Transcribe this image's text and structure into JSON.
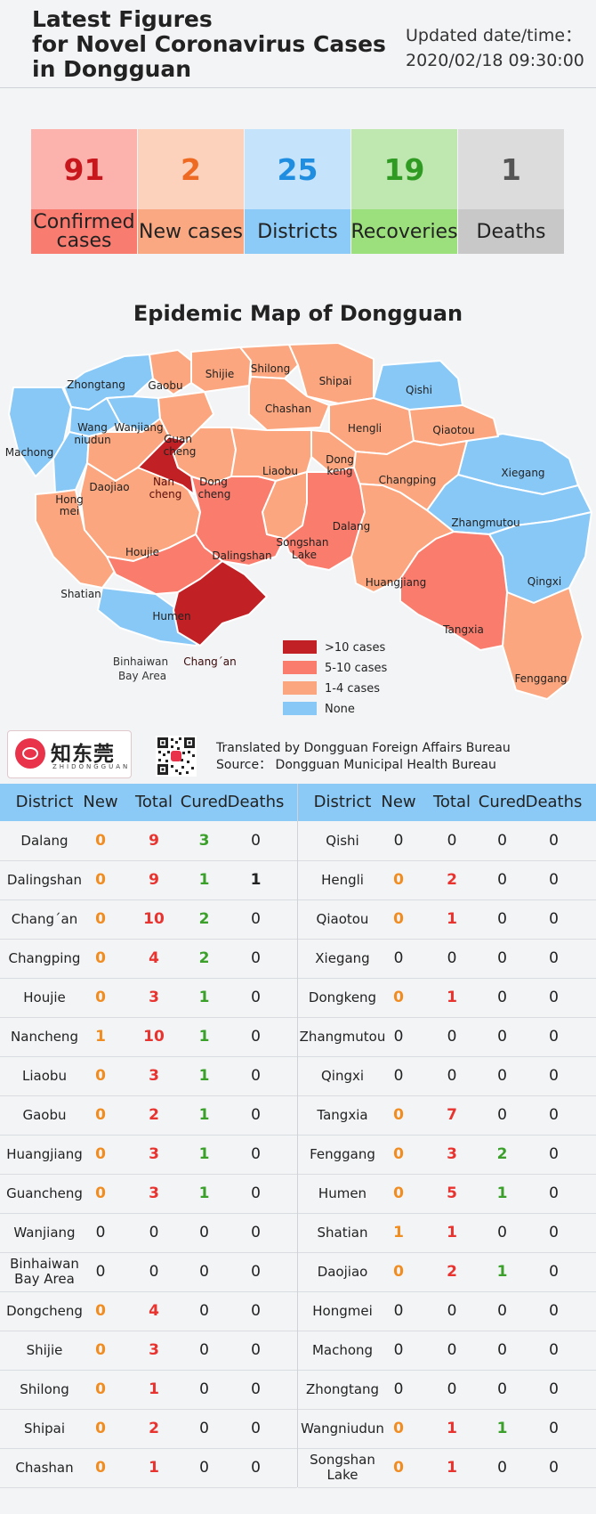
{
  "header": {
    "title_lines": [
      "Latest Figures",
      "for Novel Coronavirus Cases",
      "in Dongguan"
    ],
    "updated_label": "Updated date/time：",
    "updated_value": "2020/02/18 09:30:00"
  },
  "stats": [
    {
      "value": "91",
      "label": "Confirmed cases",
      "top_color": "#fcb3ad",
      "bottom_color": "#f97c70",
      "value_color": "#c8161d"
    },
    {
      "value": "2",
      "label": "New cases",
      "top_color": "#fdd2bc",
      "bottom_color": "#faa882",
      "value_color": "#ee6a23"
    },
    {
      "value": "25",
      "label": "Districts",
      "top_color": "#c5e3fb",
      "bottom_color": "#8ccbf7",
      "value_color": "#1f8ee0"
    },
    {
      "value": "19",
      "label": "Recoveries",
      "top_color": "#bfe8b0",
      "bottom_color": "#9be07c",
      "value_color": "#2f9b22"
    },
    {
      "value": "1",
      "label": "Deaths",
      "top_color": "#dcdcdc",
      "bottom_color": "#c8c8c8",
      "value_color": "#555555"
    }
  ],
  "map": {
    "title": "Epidemic Map of Dongguan",
    "colors": {
      "high": "#c12025",
      "mid": "#f97c6c",
      "low": "#fba67e",
      "none": "#88c8f7"
    },
    "legend": [
      {
        "label": ">10 cases",
        "color": "#c12025"
      },
      {
        "label": "5-10 cases",
        "color": "#f97c6c"
      },
      {
        "label": "1-4 cases",
        "color": "#fba67e"
      },
      {
        "label": "None",
        "color": "#88c8f7"
      }
    ],
    "district_labels": {
      "zhongtang": "Zhongtang",
      "gaobu": "Gaobu",
      "shijie": "Shijie",
      "shilong": "Shilong",
      "shipai": "Shipai",
      "qishi": "Qishi",
      "machong": "Machong",
      "wangniudun_1": "Wang",
      "wangniudun_2": "niudun",
      "wanjiang": "Wanjiang",
      "guancheng_1": "Guan",
      "guancheng_2": "cheng",
      "chashan": "Chashan",
      "hengli": "Hengli",
      "qiaotou": "Qiaotou",
      "dongkeng_1": "Dong",
      "dongkeng_2": "keng",
      "xiegang": "Xiegang",
      "daojiao": "Daojiao",
      "nancheng_1": "Nan",
      "nancheng_2": "cheng",
      "dongcheng_1": "Dong",
      "dongcheng_2": "cheng",
      "liaobu": "Liaobu",
      "changping": "Changping",
      "hongmei_1": "Hong",
      "hongmei_2": "mei",
      "dalang": "Dalang",
      "zhangmutou": "Zhangmutou",
      "houjie": "Houjie",
      "dalingshan": "Dalingshan",
      "songshanlake_1": "Songshan",
      "songshanlake_2": "Lake",
      "shatian": "Shatian",
      "huangjiang": "Huangjiang",
      "qingxi": "Qingxi",
      "humen": "Humen",
      "tangxia": "Tangxia",
      "binhaiwan_1": "Binhaiwan",
      "binhaiwan_2": "Bay Area",
      "changan": "Chang´an",
      "fenggang": "Fenggang"
    }
  },
  "branding": {
    "logo_text": "知东莞",
    "logo_sub": "ZHIDONGGUAN",
    "logo_color": "#e8334a",
    "translated_by": "Translated by Dongguan Foreign Affairs Bureau",
    "source": "Source：  Dongguan Municipal Health Bureau"
  },
  "table": {
    "headers": [
      "District",
      "New",
      "Total",
      "Cured",
      "Deaths"
    ],
    "header_color": "#8bcaf6",
    "left": [
      {
        "district": "Dalang",
        "new": "0",
        "total": "9",
        "cured": "3",
        "deaths": "0"
      },
      {
        "district": "Dalingshan",
        "new": "0",
        "total": "9",
        "cured": "1",
        "deaths": "1"
      },
      {
        "district": "Chang´an",
        "new": "0",
        "total": "10",
        "cured": "2",
        "deaths": "0"
      },
      {
        "district": "Changping",
        "new": "0",
        "total": "4",
        "cured": "2",
        "deaths": "0"
      },
      {
        "district": "Houjie",
        "new": "0",
        "total": "3",
        "cured": "1",
        "deaths": "0"
      },
      {
        "district": "Nancheng",
        "new": "1",
        "total": "10",
        "cured": "1",
        "deaths": "0"
      },
      {
        "district": "Liaobu",
        "new": "0",
        "total": "3",
        "cured": "1",
        "deaths": "0"
      },
      {
        "district": "Gaobu",
        "new": "0",
        "total": "2",
        "cured": "1",
        "deaths": "0"
      },
      {
        "district": "Huangjiang",
        "new": "0",
        "total": "3",
        "cured": "1",
        "deaths": "0"
      },
      {
        "district": "Guancheng",
        "new": "0",
        "total": "3",
        "cured": "1",
        "deaths": "0"
      },
      {
        "district": "Wanjiang",
        "new": "0",
        "total": "0",
        "cured": "0",
        "deaths": "0"
      },
      {
        "district": "Binhaiwan Bay Area",
        "new": "0",
        "total": "0",
        "cured": "0",
        "deaths": "0"
      },
      {
        "district": "Dongcheng",
        "new": "0",
        "total": "4",
        "cured": "0",
        "deaths": "0"
      },
      {
        "district": "Shijie",
        "new": "0",
        "total": "3",
        "cured": "0",
        "deaths": "0"
      },
      {
        "district": "Shilong",
        "new": "0",
        "total": "1",
        "cured": "0",
        "deaths": "0"
      },
      {
        "district": "Shipai",
        "new": "0",
        "total": "2",
        "cured": "0",
        "deaths": "0"
      },
      {
        "district": "Chashan",
        "new": "0",
        "total": "1",
        "cured": "0",
        "deaths": "0"
      }
    ],
    "right": [
      {
        "district": "Qishi",
        "new": "0",
        "total": "0",
        "cured": "0",
        "deaths": "0"
      },
      {
        "district": "Hengli",
        "new": "0",
        "total": "2",
        "cured": "0",
        "deaths": "0"
      },
      {
        "district": "Qiaotou",
        "new": "0",
        "total": "1",
        "cured": "0",
        "deaths": "0"
      },
      {
        "district": "Xiegang",
        "new": "0",
        "total": "0",
        "cured": "0",
        "deaths": "0"
      },
      {
        "district": "Dongkeng",
        "new": "0",
        "total": "1",
        "cured": "0",
        "deaths": "0"
      },
      {
        "district": "Zhangmutou",
        "new": "0",
        "total": "0",
        "cured": "0",
        "deaths": "0"
      },
      {
        "district": "Qingxi",
        "new": "0",
        "total": "0",
        "cured": "0",
        "deaths": "0"
      },
      {
        "district": "Tangxia",
        "new": "0",
        "total": "7",
        "cured": "0",
        "deaths": "0"
      },
      {
        "district": "Fenggang",
        "new": "0",
        "total": "3",
        "cured": "2",
        "deaths": "0"
      },
      {
        "district": "Humen",
        "new": "0",
        "total": "5",
        "cured": "1",
        "deaths": "0"
      },
      {
        "district": "Shatian",
        "new": "1",
        "total": "1",
        "cured": "0",
        "deaths": "0"
      },
      {
        "district": "Daojiao",
        "new": "0",
        "total": "2",
        "cured": "1",
        "deaths": "0"
      },
      {
        "district": "Hongmei",
        "new": "0",
        "total": "0",
        "cured": "0",
        "deaths": "0"
      },
      {
        "district": "Machong",
        "new": "0",
        "total": "0",
        "cured": "0",
        "deaths": "0"
      },
      {
        "district": "Zhongtang",
        "new": "0",
        "total": "0",
        "cured": "0",
        "deaths": "0"
      },
      {
        "district": "Wangniudun",
        "new": "0",
        "total": "1",
        "cured": "1",
        "deaths": "0"
      },
      {
        "district": "Songshan Lake",
        "new": "0",
        "total": "1",
        "cured": "0",
        "deaths": "0"
      }
    ]
  }
}
